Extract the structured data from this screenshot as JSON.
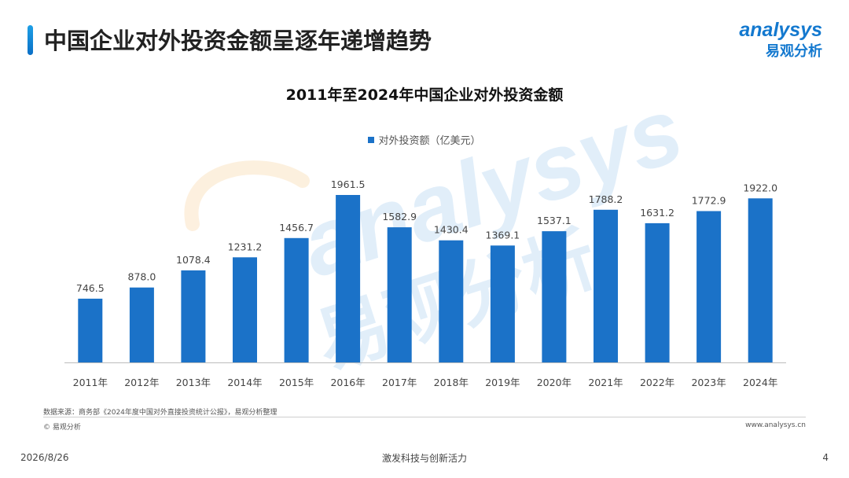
{
  "header": {
    "title": "中国企业对外投资金额呈逐年递增趋势"
  },
  "brand": {
    "logo_text": "analysys",
    "cn_name": "易观分析",
    "watermark_text": "analysys",
    "watermark_cn": "易观分析"
  },
  "chart_data": {
    "type": "bar",
    "title": "2011年至2024年中国企业对外投资金额",
    "xlabel": "",
    "ylabel": "",
    "categories": [
      "2011年",
      "2012年",
      "2013年",
      "2014年",
      "2015年",
      "2016年",
      "2017年",
      "2018年",
      "2019年",
      "2020年",
      "2021年",
      "2022年",
      "2023年",
      "2024年"
    ],
    "series": [
      {
        "name": "对外投资额（亿美元）",
        "values": [
          746.5,
          878.0,
          1078.4,
          1231.2,
          1456.7,
          1961.5,
          1582.9,
          1430.4,
          1369.1,
          1537.1,
          1788.2,
          1631.2,
          1772.9,
          1922.0
        ],
        "labels": [
          "746.5",
          "878.0",
          "1078.4",
          "1231.2",
          "1456.7",
          "1961.5",
          "1582.9",
          "1430.4",
          "1369.1",
          "1537.1",
          "1788.2",
          "1631.2",
          "1772.9",
          "1922.0"
        ]
      }
    ],
    "ylim": [
      0,
      1961.5
    ],
    "grid": false,
    "legend_position": "top-center",
    "bar_color": "#1b72c8"
  },
  "footer": {
    "source": "数据来源：商务部《2024年度中国对外直接投资统计公报》，易观分析整理",
    "copyright": "© 易观分析",
    "website": "www.analysys.cn",
    "date": "2026/8/26",
    "slogan": "激发科技与创新活力",
    "page_number": "4"
  }
}
